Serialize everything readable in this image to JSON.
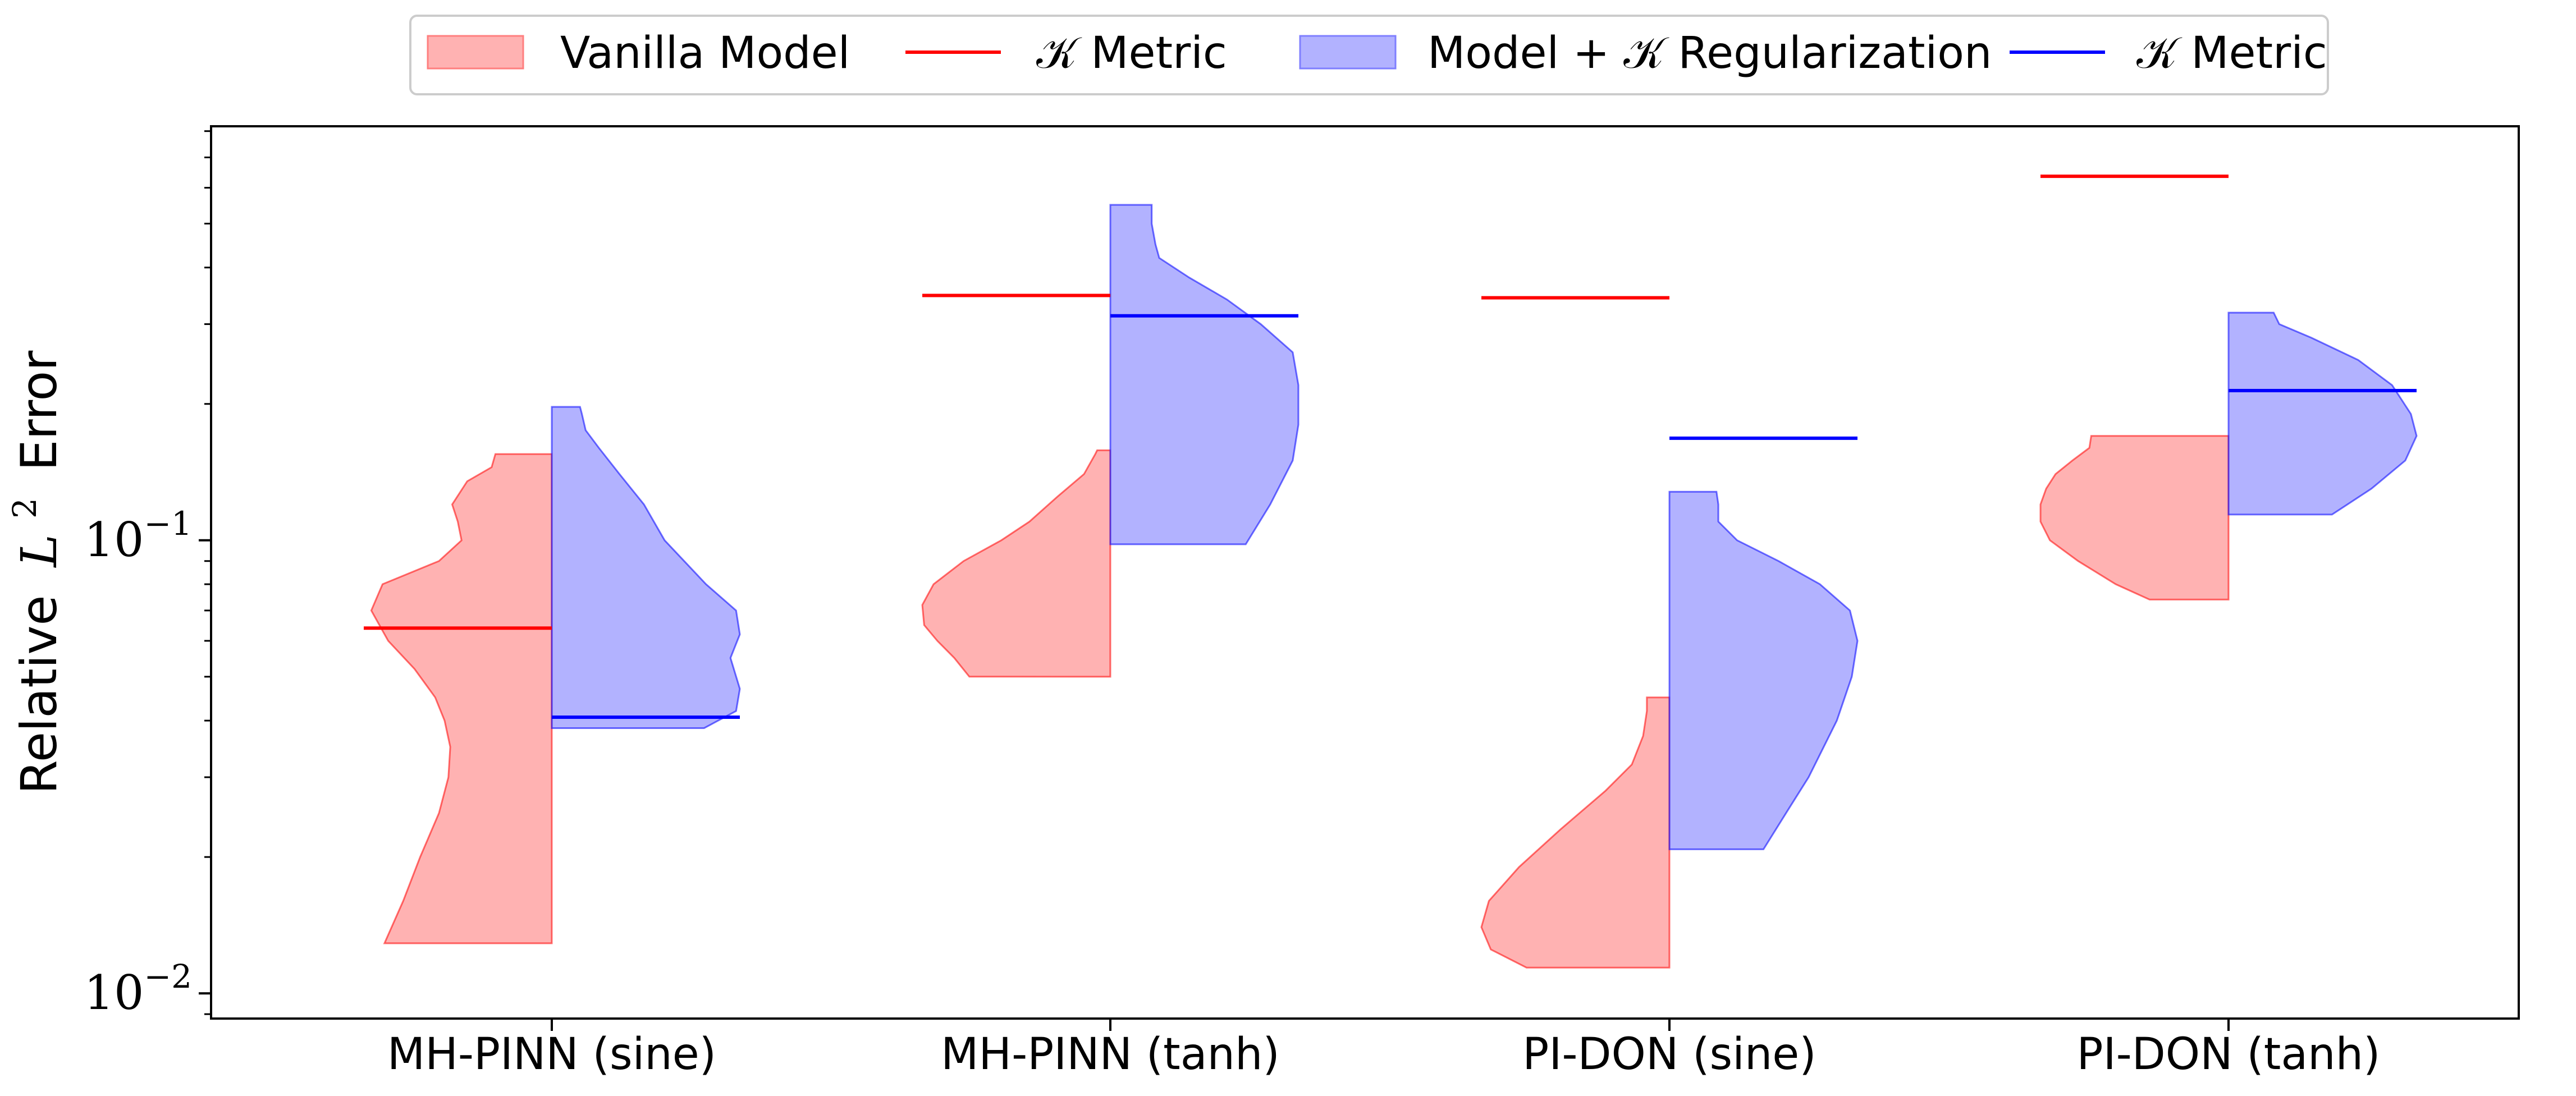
{
  "chart_data": {
    "type": "violin",
    "y_scale": "log",
    "ylim": [
      0.0088,
      0.82
    ],
    "yticks_major": [
      {
        "value": 0.01,
        "base": "10",
        "exp": "−2"
      },
      {
        "value": 0.1,
        "base": "10",
        "exp": "−1"
      }
    ],
    "ylabel": {
      "prefix": "Relative",
      "math": "L",
      "sup": "2",
      "suffix": "Error"
    },
    "categories": [
      "MH-PINN (sine)",
      "MH-PINN (tanh)",
      "PI-DON (sine)",
      "PI-DON (tanh)"
    ],
    "legend": {
      "placement": "top-center",
      "entries": [
        {
          "label": "Vanilla Model",
          "kind": "patch",
          "color": "#ff7f7f"
        },
        {
          "label": "𝒦 Metric",
          "kind": "line",
          "color": "#ff0000"
        },
        {
          "label": "Model + 𝒦 Regularization",
          "kind": "patch",
          "color": "#7f7fff"
        },
        {
          "label": "𝒦 Metric",
          "kind": "line",
          "color": "#0000ff"
        }
      ]
    },
    "colors": {
      "vanilla_fill": "#ff7f7f",
      "vanilla_line": "#ff0000",
      "reg_fill": "#7f7fff",
      "reg_line": "#0000ff"
    },
    "series": [
      {
        "name": "Vanilla Model",
        "side": "left",
        "violins": [
          {
            "category": "MH-PINN (sine)",
            "min": 0.0129,
            "max": 0.155,
            "profile": [
              [
                0.0129,
                0.89
              ],
              [
                0.016,
                0.79
              ],
              [
                0.02,
                0.7
              ],
              [
                0.025,
                0.6
              ],
              [
                0.03,
                0.55
              ],
              [
                0.035,
                0.54
              ],
              [
                0.04,
                0.57
              ],
              [
                0.045,
                0.62
              ],
              [
                0.052,
                0.73
              ],
              [
                0.06,
                0.87
              ],
              [
                0.07,
                0.96
              ],
              [
                0.08,
                0.9
              ],
              [
                0.09,
                0.6
              ],
              [
                0.1,
                0.48
              ],
              [
                0.11,
                0.5
              ],
              [
                0.12,
                0.53
              ],
              [
                0.135,
                0.45
              ],
              [
                0.145,
                0.32
              ],
              [
                0.155,
                0.3
              ]
            ]
          },
          {
            "category": "MH-PINN (tanh)",
            "min": 0.05,
            "max": 0.158,
            "profile": [
              [
                0.05,
                0.75
              ],
              [
                0.055,
                0.83
              ],
              [
                0.06,
                0.92
              ],
              [
                0.065,
                0.99
              ],
              [
                0.072,
                1.0
              ],
              [
                0.08,
                0.94
              ],
              [
                0.09,
                0.78
              ],
              [
                0.1,
                0.58
              ],
              [
                0.11,
                0.43
              ],
              [
                0.125,
                0.28
              ],
              [
                0.14,
                0.14
              ],
              [
                0.155,
                0.08
              ],
              [
                0.158,
                0.07
              ]
            ]
          },
          {
            "category": "PI-DON (sine)",
            "min": 0.0114,
            "max": 0.045,
            "profile": [
              [
                0.0114,
                0.76
              ],
              [
                0.0125,
                0.95
              ],
              [
                0.014,
                1.0
              ],
              [
                0.016,
                0.96
              ],
              [
                0.019,
                0.8
              ],
              [
                0.023,
                0.58
              ],
              [
                0.028,
                0.34
              ],
              [
                0.032,
                0.2
              ],
              [
                0.037,
                0.14
              ],
              [
                0.042,
                0.12
              ],
              [
                0.045,
                0.12
              ]
            ]
          },
          {
            "category": "PI-DON (tanh)",
            "min": 0.074,
            "max": 0.17,
            "profile": [
              [
                0.074,
                0.42
              ],
              [
                0.08,
                0.6
              ],
              [
                0.09,
                0.8
              ],
              [
                0.1,
                0.95
              ],
              [
                0.11,
                1.0
              ],
              [
                0.12,
                1.0
              ],
              [
                0.13,
                0.97
              ],
              [
                0.14,
                0.92
              ],
              [
                0.15,
                0.83
              ],
              [
                0.16,
                0.74
              ],
              [
                0.17,
                0.73
              ]
            ]
          }
        ],
        "k_metric": [
          0.064,
          0.347,
          0.343,
          0.636
        ]
      },
      {
        "name": "Model + 𝒦 Regularization",
        "side": "right",
        "violins": [
          {
            "category": "MH-PINN (sine)",
            "min": 0.0385,
            "max": 0.197,
            "profile": [
              [
                0.0385,
                0.81
              ],
              [
                0.042,
                0.98
              ],
              [
                0.047,
                1.0
              ],
              [
                0.055,
                0.95
              ],
              [
                0.062,
                1.0
              ],
              [
                0.07,
                0.98
              ],
              [
                0.08,
                0.82
              ],
              [
                0.1,
                0.6
              ],
              [
                0.12,
                0.49
              ],
              [
                0.14,
                0.36
              ],
              [
                0.16,
                0.25
              ],
              [
                0.175,
                0.18
              ],
              [
                0.19,
                0.16
              ],
              [
                0.197,
                0.15
              ]
            ]
          },
          {
            "category": "MH-PINN (tanh)",
            "min": 0.098,
            "max": 0.55,
            "profile": [
              [
                0.098,
                0.72
              ],
              [
                0.12,
                0.85
              ],
              [
                0.15,
                0.97
              ],
              [
                0.18,
                1.0
              ],
              [
                0.22,
                1.0
              ],
              [
                0.26,
                0.97
              ],
              [
                0.3,
                0.8
              ],
              [
                0.34,
                0.62
              ],
              [
                0.38,
                0.42
              ],
              [
                0.42,
                0.26
              ],
              [
                0.45,
                0.24
              ],
              [
                0.5,
                0.22
              ],
              [
                0.55,
                0.22
              ]
            ]
          },
          {
            "category": "PI-DON (sine)",
            "min": 0.0208,
            "max": 0.128,
            "profile": [
              [
                0.0208,
                0.5
              ],
              [
                0.025,
                0.62
              ],
              [
                0.03,
                0.74
              ],
              [
                0.04,
                0.89
              ],
              [
                0.05,
                0.97
              ],
              [
                0.06,
                1.0
              ],
              [
                0.07,
                0.96
              ],
              [
                0.08,
                0.8
              ],
              [
                0.09,
                0.58
              ],
              [
                0.1,
                0.36
              ],
              [
                0.11,
                0.26
              ],
              [
                0.12,
                0.26
              ],
              [
                0.128,
                0.25
              ]
            ]
          },
          {
            "category": "PI-DON (tanh)",
            "min": 0.114,
            "max": 0.318,
            "profile": [
              [
                0.114,
                0.55
              ],
              [
                0.13,
                0.76
              ],
              [
                0.15,
                0.94
              ],
              [
                0.17,
                1.0
              ],
              [
                0.19,
                0.97
              ],
              [
                0.22,
                0.87
              ],
              [
                0.25,
                0.69
              ],
              [
                0.28,
                0.44
              ],
              [
                0.3,
                0.27
              ],
              [
                0.318,
                0.24
              ]
            ]
          }
        ],
        "k_metric": [
          0.0407,
          0.313,
          0.168,
          0.214
        ]
      }
    ]
  }
}
